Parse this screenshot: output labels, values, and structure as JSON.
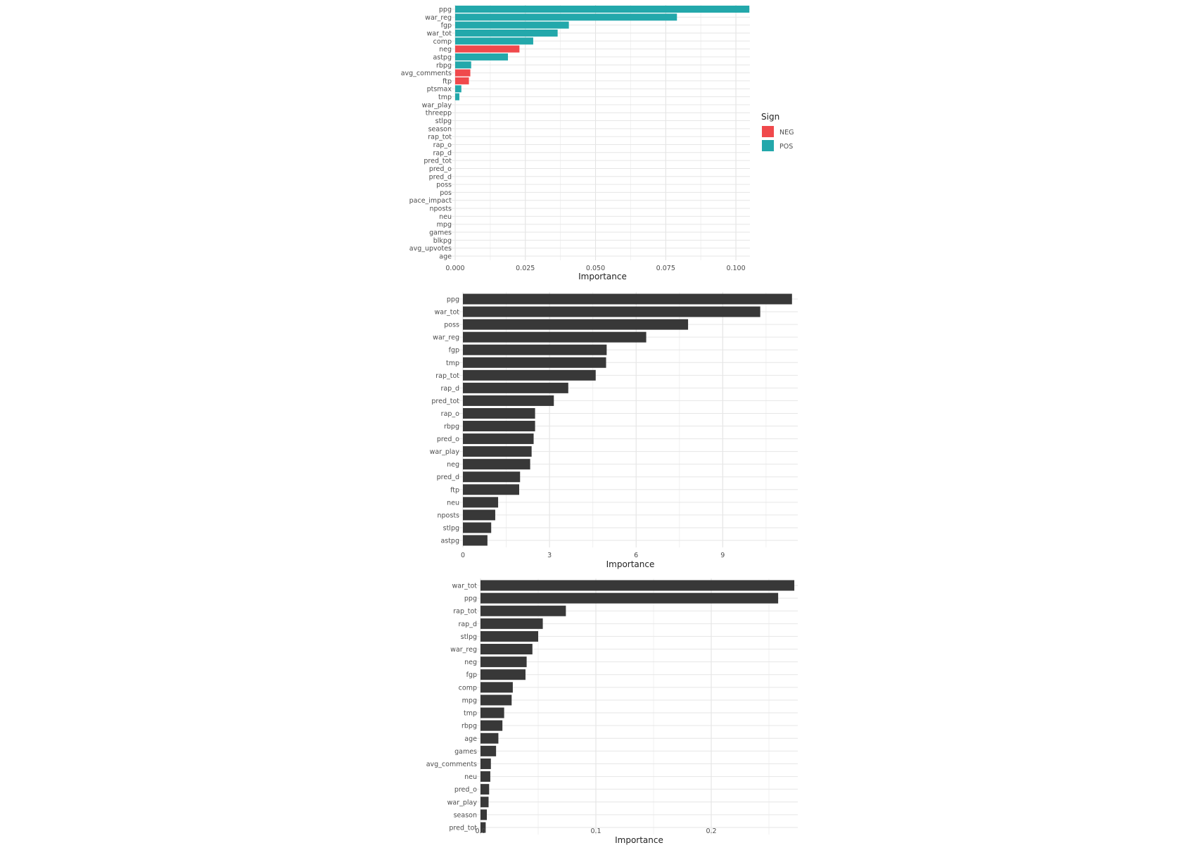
{
  "chart_data": [
    {
      "type": "bar",
      "orientation": "horizontal",
      "xlabel": "Importance",
      "xlim": [
        0,
        0.105
      ],
      "xticks": [
        0,
        0.025,
        0.05,
        0.075,
        0.1
      ],
      "xtick_labels": [
        "0.000",
        "0.025",
        "0.050",
        "0.075",
        "0.100"
      ],
      "grid": true,
      "legend": {
        "title": "Sign",
        "position": "right",
        "entries": [
          {
            "label": "NEG",
            "color": "#F0494C"
          },
          {
            "label": "POS",
            "color": "#23A8AB"
          }
        ]
      },
      "categories": [
        "ppg",
        "war_reg",
        "fgp",
        "war_tot",
        "comp",
        "neg",
        "astpg",
        "rbpg",
        "avg_comments",
        "ftp",
        "ptsmax",
        "tmp",
        "war_play",
        "threepp",
        "stlpg",
        "season",
        "rap_tot",
        "rap_o",
        "rap_d",
        "pred_tot",
        "pred_o",
        "pred_d",
        "poss",
        "pos",
        "pace_impact",
        "nposts",
        "neu",
        "mpg",
        "games",
        "blkpg",
        "avg_upvotes",
        "age"
      ],
      "values": [
        0.1048,
        0.079,
        0.0405,
        0.0365,
        0.0278,
        0.0229,
        0.0188,
        0.0057,
        0.0054,
        0.0049,
        0.0022,
        0.0015,
        0,
        0,
        0,
        0,
        0,
        0,
        0,
        0,
        0,
        0,
        0,
        0,
        0,
        0,
        0,
        0,
        0,
        0,
        0,
        0
      ],
      "signs": [
        "POS",
        "POS",
        "POS",
        "POS",
        "POS",
        "NEG",
        "POS",
        "POS",
        "NEG",
        "NEG",
        "POS",
        "POS",
        "POS",
        "POS",
        "POS",
        "POS",
        "POS",
        "POS",
        "POS",
        "POS",
        "POS",
        "POS",
        "POS",
        "POS",
        "POS",
        "POS",
        "POS",
        "POS",
        "POS",
        "POS",
        "POS",
        "POS"
      ]
    },
    {
      "type": "bar",
      "orientation": "horizontal",
      "xlabel": "Importance",
      "xlim": [
        0,
        11.6
      ],
      "xticks": [
        0,
        3,
        6,
        9
      ],
      "xtick_labels": [
        "0",
        "3",
        "6",
        "9"
      ],
      "grid": true,
      "bar_color": "#383838",
      "categories": [
        "ppg",
        "war_tot",
        "poss",
        "war_reg",
        "fgp",
        "tmp",
        "rap_tot",
        "rap_d",
        "pred_tot",
        "rap_o",
        "rbpg",
        "pred_o",
        "war_play",
        "neg",
        "pred_d",
        "ftp",
        "neu",
        "nposts",
        "stlpg",
        "astpg"
      ],
      "values": [
        11.4,
        10.3,
        7.8,
        6.35,
        4.98,
        4.96,
        4.6,
        3.65,
        3.15,
        2.5,
        2.5,
        2.45,
        2.38,
        2.33,
        1.98,
        1.95,
        1.22,
        1.12,
        0.98,
        0.85
      ]
    },
    {
      "type": "bar",
      "orientation": "horizontal",
      "xlabel": "Importance",
      "xlim": [
        0,
        0.275
      ],
      "xticks": [
        0,
        0.1,
        0.2
      ],
      "xtick_labels": [
        "0.0",
        "0.1",
        "0.2"
      ],
      "grid": true,
      "bar_color": "#383838",
      "categories": [
        "war_tot",
        "ppg",
        "rap_tot",
        "rap_d",
        "stlpg",
        "war_reg",
        "neg",
        "fgp",
        "comp",
        "mpg",
        "tmp",
        "rbpg",
        "age",
        "games",
        "avg_comments",
        "neu",
        "pred_o",
        "war_play",
        "season",
        "pred_tot"
      ],
      "values": [
        0.272,
        0.258,
        0.074,
        0.054,
        0.05,
        0.045,
        0.04,
        0.039,
        0.028,
        0.027,
        0.0205,
        0.019,
        0.0155,
        0.0135,
        0.009,
        0.0085,
        0.0075,
        0.007,
        0.0055,
        0.0045
      ]
    }
  ]
}
